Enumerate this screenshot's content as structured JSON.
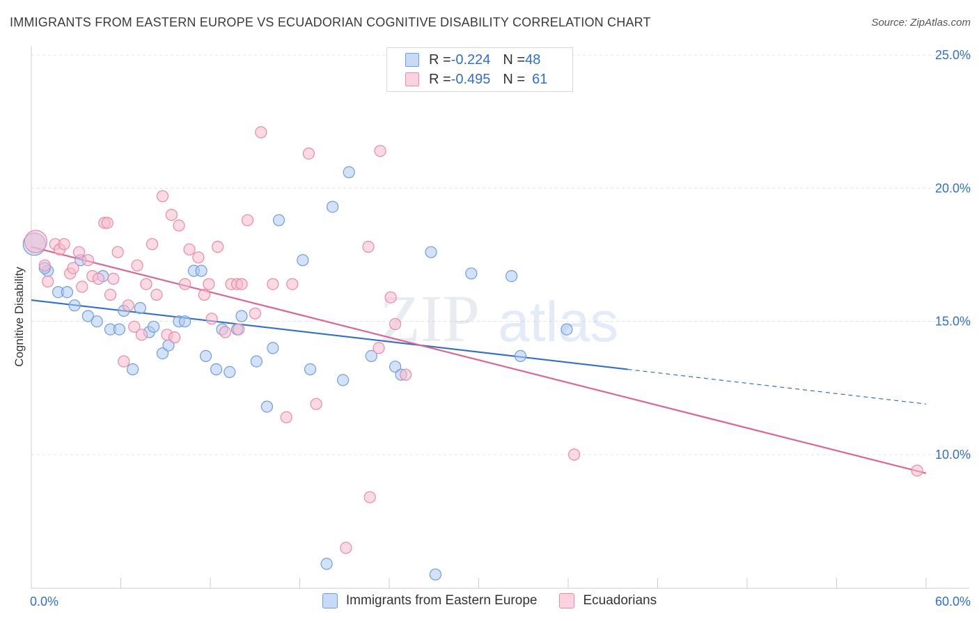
{
  "title": "IMMIGRANTS FROM EASTERN EUROPE VS ECUADORIAN COGNITIVE DISABILITY CORRELATION CHART",
  "source": "Source: ZipAtlas.com",
  "watermark": {
    "zip": "ZIP",
    "atlas": "atlas"
  },
  "legend": {
    "rows": [
      {
        "r_label": "R = ",
        "r_value": "-0.224",
        "n_label": "N = ",
        "n_value": "48"
      },
      {
        "r_label": "R = ",
        "r_value": "-0.495",
        "n_label": "N = ",
        "n_value": "61"
      }
    ]
  },
  "colors": {
    "blue_fill": "#aecbf2",
    "blue_stroke": "#6b9ee0",
    "blue_line": "#2f6fd0",
    "pink_fill": "#f7bccd",
    "pink_stroke": "#e68aa8",
    "pink_line": "#e0648f",
    "tick_text": "#2f6fd0",
    "grid": "#e3e3e3"
  },
  "chart_data": {
    "type": "scatter",
    "title": "IMMIGRANTS FROM EASTERN EUROPE VS ECUADORIAN COGNITIVE DISABILITY CORRELATION CHART",
    "xlabel": "",
    "ylabel": "Cognitive Disability",
    "xlim": [
      0,
      60
    ],
    "ylim": [
      5,
      26
    ],
    "x_tick_labels": [
      "0.0%",
      "60.0%"
    ],
    "y_ticks": [
      10,
      15,
      20,
      25
    ],
    "y_tick_labels": [
      "10.0%",
      "15.0%",
      "20.0%",
      "25.0%"
    ],
    "grid": true,
    "legend_position": "bottom",
    "series": [
      {
        "name": "Immigrants from Eastern Europe",
        "color": "#6b9ee0",
        "r": -0.224,
        "n": 48,
        "trend": {
          "x": [
            0,
            40
          ],
          "y": [
            15.8,
            13.2
          ]
        },
        "trend_dashed": {
          "x": [
            40,
            60
          ],
          "y": [
            13.2,
            11.9
          ]
        },
        "points": [
          {
            "x": 0.2,
            "y": 17.9,
            "big": true
          },
          {
            "x": 1.1,
            "y": 16.9
          },
          {
            "x": 0.9,
            "y": 17.0
          },
          {
            "x": 1.8,
            "y": 16.1
          },
          {
            "x": 2.4,
            "y": 16.1
          },
          {
            "x": 2.9,
            "y": 15.6
          },
          {
            "x": 3.3,
            "y": 17.3
          },
          {
            "x": 3.8,
            "y": 15.2
          },
          {
            "x": 4.4,
            "y": 15.0
          },
          {
            "x": 4.8,
            "y": 16.7
          },
          {
            "x": 5.3,
            "y": 14.7
          },
          {
            "x": 5.9,
            "y": 14.7
          },
          {
            "x": 6.2,
            "y": 15.4
          },
          {
            "x": 6.8,
            "y": 13.2
          },
          {
            "x": 7.3,
            "y": 15.5
          },
          {
            "x": 7.9,
            "y": 14.6
          },
          {
            "x": 8.2,
            "y": 14.8
          },
          {
            "x": 8.8,
            "y": 13.8
          },
          {
            "x": 9.2,
            "y": 14.1
          },
          {
            "x": 9.9,
            "y": 15.0
          },
          {
            "x": 10.3,
            "y": 15.0
          },
          {
            "x": 10.9,
            "y": 16.9
          },
          {
            "x": 11.4,
            "y": 16.9
          },
          {
            "x": 11.7,
            "y": 13.7
          },
          {
            "x": 12.4,
            "y": 13.2
          },
          {
            "x": 12.8,
            "y": 14.7
          },
          {
            "x": 13.3,
            "y": 13.1
          },
          {
            "x": 13.8,
            "y": 14.7
          },
          {
            "x": 14.1,
            "y": 15.2
          },
          {
            "x": 15.1,
            "y": 13.5
          },
          {
            "x": 15.8,
            "y": 11.8
          },
          {
            "x": 16.2,
            "y": 14.0
          },
          {
            "x": 16.6,
            "y": 18.8
          },
          {
            "x": 18.2,
            "y": 17.3
          },
          {
            "x": 18.7,
            "y": 13.2
          },
          {
            "x": 20.2,
            "y": 19.3
          },
          {
            "x": 20.9,
            "y": 12.8
          },
          {
            "x": 21.3,
            "y": 20.6
          },
          {
            "x": 22.8,
            "y": 13.7
          },
          {
            "x": 24.4,
            "y": 13.3
          },
          {
            "x": 24.8,
            "y": 13.0
          },
          {
            "x": 26.8,
            "y": 17.6
          },
          {
            "x": 29.5,
            "y": 16.8
          },
          {
            "x": 32.2,
            "y": 16.7
          },
          {
            "x": 32.8,
            "y": 13.7
          },
          {
            "x": 35.9,
            "y": 14.7
          },
          {
            "x": 19.8,
            "y": 5.9
          },
          {
            "x": 27.1,
            "y": 5.5
          }
        ]
      },
      {
        "name": "Ecuadorians",
        "color": "#e68aa8",
        "r": -0.495,
        "n": 61,
        "trend": {
          "x": [
            0,
            60
          ],
          "y": [
            17.8,
            9.3
          ]
        },
        "points": [
          {
            "x": 0.3,
            "y": 18.0,
            "big": true
          },
          {
            "x": 0.9,
            "y": 17.1
          },
          {
            "x": 1.1,
            "y": 16.5
          },
          {
            "x": 1.6,
            "y": 17.9
          },
          {
            "x": 1.9,
            "y": 17.7
          },
          {
            "x": 2.2,
            "y": 17.9
          },
          {
            "x": 2.6,
            "y": 16.8
          },
          {
            "x": 2.8,
            "y": 17.0
          },
          {
            "x": 3.2,
            "y": 17.6
          },
          {
            "x": 3.4,
            "y": 16.3
          },
          {
            "x": 3.8,
            "y": 17.3
          },
          {
            "x": 4.1,
            "y": 16.7
          },
          {
            "x": 4.5,
            "y": 16.6
          },
          {
            "x": 4.9,
            "y": 18.7
          },
          {
            "x": 5.1,
            "y": 18.7
          },
          {
            "x": 5.3,
            "y": 16.0
          },
          {
            "x": 5.5,
            "y": 16.6
          },
          {
            "x": 5.8,
            "y": 17.6
          },
          {
            "x": 6.2,
            "y": 13.5
          },
          {
            "x": 6.5,
            "y": 15.6
          },
          {
            "x": 6.9,
            "y": 14.8
          },
          {
            "x": 7.1,
            "y": 17.1
          },
          {
            "x": 7.4,
            "y": 14.5
          },
          {
            "x": 7.7,
            "y": 16.4
          },
          {
            "x": 8.1,
            "y": 17.9
          },
          {
            "x": 8.4,
            "y": 16.0
          },
          {
            "x": 8.8,
            "y": 19.7
          },
          {
            "x": 9.1,
            "y": 14.5
          },
          {
            "x": 9.4,
            "y": 19.0
          },
          {
            "x": 9.6,
            "y": 14.4
          },
          {
            "x": 9.9,
            "y": 18.6
          },
          {
            "x": 10.3,
            "y": 16.4
          },
          {
            "x": 10.6,
            "y": 17.7
          },
          {
            "x": 11.2,
            "y": 17.4
          },
          {
            "x": 11.6,
            "y": 16.0
          },
          {
            "x": 11.9,
            "y": 16.4
          },
          {
            "x": 12.1,
            "y": 15.1
          },
          {
            "x": 12.5,
            "y": 17.8
          },
          {
            "x": 13.0,
            "y": 14.6
          },
          {
            "x": 13.4,
            "y": 16.4
          },
          {
            "x": 13.8,
            "y": 16.4
          },
          {
            "x": 14.1,
            "y": 16.4
          },
          {
            "x": 14.5,
            "y": 18.8
          },
          {
            "x": 15.0,
            "y": 15.3
          },
          {
            "x": 15.4,
            "y": 22.1
          },
          {
            "x": 17.1,
            "y": 11.4
          },
          {
            "x": 17.5,
            "y": 16.4
          },
          {
            "x": 18.6,
            "y": 21.3
          },
          {
            "x": 19.1,
            "y": 11.9
          },
          {
            "x": 22.6,
            "y": 17.8
          },
          {
            "x": 23.3,
            "y": 14.0
          },
          {
            "x": 23.4,
            "y": 21.4
          },
          {
            "x": 24.1,
            "y": 15.9
          },
          {
            "x": 24.4,
            "y": 14.9
          },
          {
            "x": 25.1,
            "y": 13.0
          },
          {
            "x": 22.7,
            "y": 8.4
          },
          {
            "x": 21.1,
            "y": 6.5
          },
          {
            "x": 36.4,
            "y": 10.0
          },
          {
            "x": 59.4,
            "y": 9.4
          },
          {
            "x": 16.2,
            "y": 16.4
          },
          {
            "x": 13.9,
            "y": 14.7
          }
        ]
      }
    ]
  }
}
